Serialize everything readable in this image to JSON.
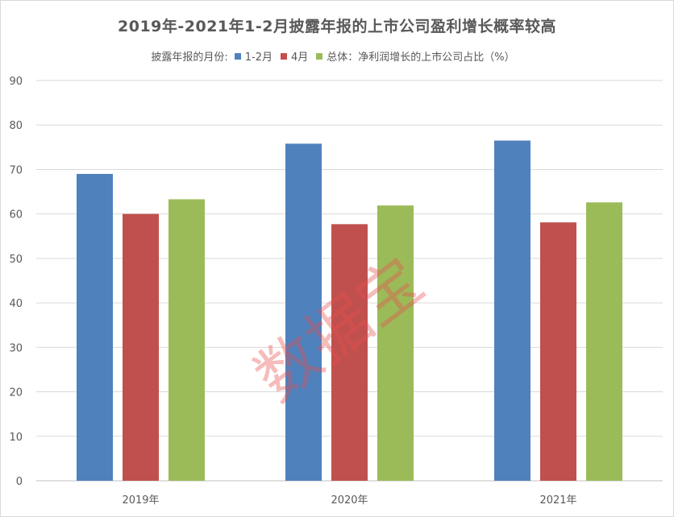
{
  "chart_data": {
    "type": "bar",
    "title": "2019年-2021年1-2月披露年报的上市公司盈利增长概率较高",
    "legend_title": "披露年报的月份:",
    "legend_position": "top",
    "categories": [
      "2019年",
      "2020年",
      "2021年"
    ],
    "series": [
      {
        "name": "1-2月",
        "color": "#4f81bd",
        "values": [
          69,
          75.8,
          76.5
        ]
      },
      {
        "name": "4月",
        "color": "#c0504d",
        "values": [
          60,
          57.7,
          58.1
        ]
      },
      {
        "name": "总体：净利润增长的上市公司占比（%）",
        "color": "#9bbb59",
        "values": [
          63.3,
          61.9,
          62.6
        ]
      }
    ],
    "ylim": [
      0,
      90
    ],
    "yticks": [
      0,
      10,
      20,
      30,
      40,
      50,
      60,
      70,
      80,
      90
    ],
    "grid": true
  },
  "watermark": "数据宝"
}
